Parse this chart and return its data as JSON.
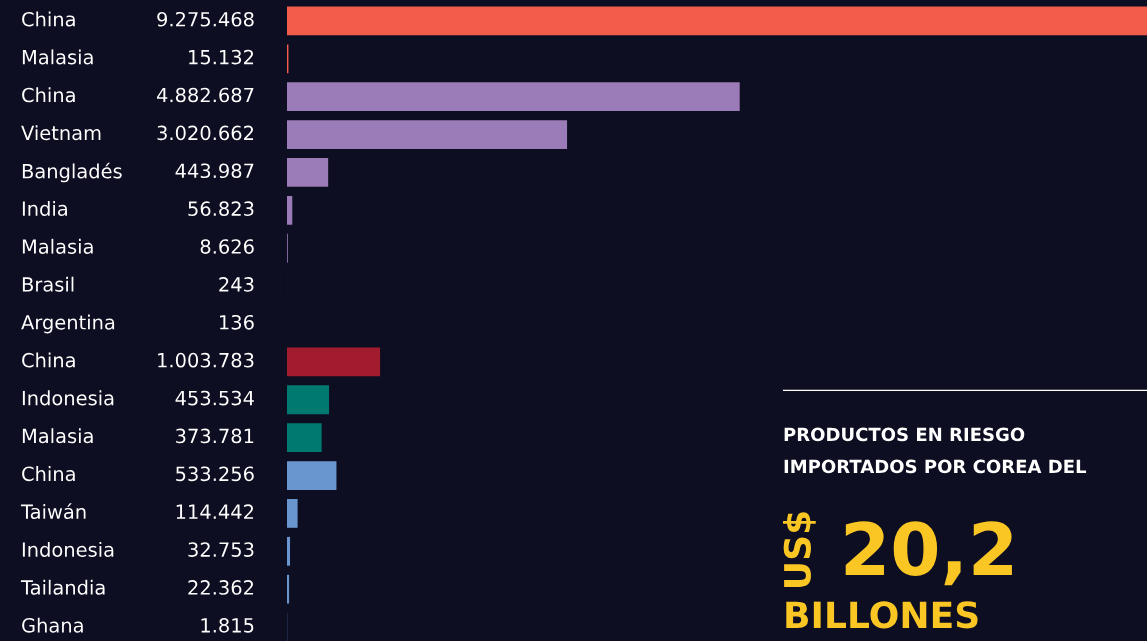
{
  "chart_data": {
    "type": "bar",
    "orientation": "horizontal",
    "categories": [
      "China",
      "Malasia",
      "China",
      "Vietnam",
      "Bangladés",
      "India",
      "Malasia",
      "Brasil",
      "Argentina",
      "China",
      "Indonesia",
      "Malasia",
      "China",
      "Taiwán",
      "Indonesia",
      "Tailandia",
      "Ghana"
    ],
    "values": [
      9275468,
      15132,
      4882687,
      3020662,
      443987,
      56823,
      8626,
      243,
      136,
      1003783,
      453534,
      373781,
      533256,
      114442,
      32753,
      22362,
      1815
    ],
    "value_labels": [
      "9.275.468",
      "15.132",
      "4.882.687",
      "3.020.662",
      "443.987",
      "56.823",
      "8.626",
      "243",
      "136",
      "1.003.783",
      "453.534",
      "373.781",
      "533.256",
      "114.442",
      "32.753",
      "22.362",
      "1.815"
    ],
    "colors": [
      "#f25c4a",
      "#f25c4a",
      "#9b7bb8",
      "#9b7bb8",
      "#9b7bb8",
      "#9b7bb8",
      "#9b7bb8",
      "#9b7bb8",
      "#9b7bb8",
      "#a31c2e",
      "#007a70",
      "#007a70",
      "#6a96d0",
      "#6a96d0",
      "#6a96d0",
      "#6a96d0",
      "#6a96d0"
    ],
    "xlim": [
      0,
      9275468
    ],
    "annotations": [
      "PRODUCTOS EN RIESGO",
      "IMPORTADOS POR COREA DEL",
      "US$",
      "20,2",
      "BILLONES"
    ]
  }
}
